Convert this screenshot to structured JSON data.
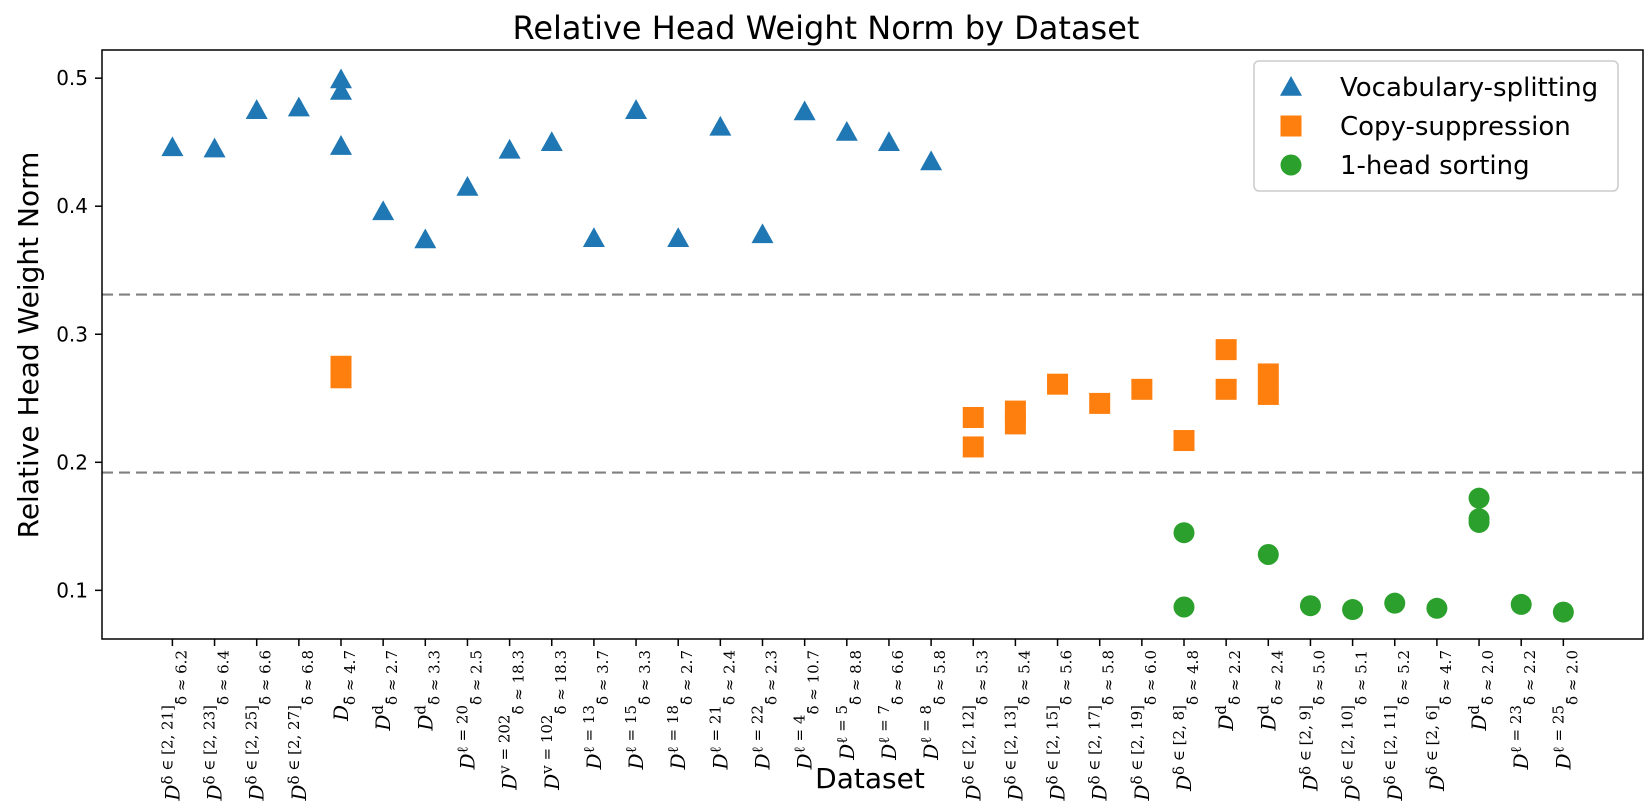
{
  "chart_data": {
    "type": "scatter",
    "title": "Relative Head Weight Norm by Dataset",
    "xlabel": "Dataset",
    "ylabel": "Relative Head Weight Norm",
    "ylim": [
      0.062,
      0.522
    ],
    "yticks": [
      "0.1",
      "0.2",
      "0.3",
      "0.4",
      "0.5"
    ],
    "categories": [
      {
        "base": "D",
        "sup": "δ ∈ [2, 21]",
        "sub": "δ̄ ≈ 6.2"
      },
      {
        "base": "D",
        "sup": "δ ∈ [2, 23]",
        "sub": "δ̄ ≈ 6.4"
      },
      {
        "base": "D",
        "sup": "δ ∈ [2, 25]",
        "sub": "δ̄ ≈ 6.6"
      },
      {
        "base": "D",
        "sup": "δ ∈ [2, 27]",
        "sub": "δ̄ ≈ 6.8"
      },
      {
        "base": "D",
        "sup": "",
        "sub": "δ̄ ≈ 4.7"
      },
      {
        "base": "D",
        "sup": "d",
        "sub": "δ̄ ≈ 2.7"
      },
      {
        "base": "D",
        "sup": "d",
        "sub": "δ̄ ≈ 3.3"
      },
      {
        "base": "D",
        "sup": "ℓ = 20",
        "sub": "δ̄ ≈ 2.5"
      },
      {
        "base": "D",
        "sup": "v = 202",
        "sub": "δ̄ ≈ 18.3"
      },
      {
        "base": "D",
        "sup": "v = 102",
        "sub": "δ̄ ≈ 18.3"
      },
      {
        "base": "D",
        "sup": "ℓ = 13",
        "sub": "δ̄ ≈ 3.7"
      },
      {
        "base": "D",
        "sup": "ℓ = 15",
        "sub": "δ̄ ≈ 3.3"
      },
      {
        "base": "D",
        "sup": "ℓ = 18",
        "sub": "δ̄ ≈ 2.7"
      },
      {
        "base": "D",
        "sup": "ℓ = 21",
        "sub": "δ̄ ≈ 2.4"
      },
      {
        "base": "D",
        "sup": "ℓ = 22",
        "sub": "δ̄ ≈ 2.3"
      },
      {
        "base": "D",
        "sup": "ℓ = 4",
        "sub": "δ̄ ≈ 10.7"
      },
      {
        "base": "D",
        "sup": "ℓ = 5",
        "sub": "δ̄ ≈ 8.8"
      },
      {
        "base": "D",
        "sup": "ℓ = 7",
        "sub": "δ̄ ≈ 6.6"
      },
      {
        "base": "D",
        "sup": "ℓ = 8",
        "sub": "δ̄ ≈ 5.8"
      },
      {
        "base": "D",
        "sup": "δ ∈ [2, 12]",
        "sub": "δ̄ ≈ 5.3"
      },
      {
        "base": "D",
        "sup": "δ ∈ [2, 13]",
        "sub": "δ̄ ≈ 5.4"
      },
      {
        "base": "D",
        "sup": "δ ∈ [2, 15]",
        "sub": "δ̄ ≈ 5.6"
      },
      {
        "base": "D",
        "sup": "δ ∈ [2, 17]",
        "sub": "δ̄ ≈ 5.8"
      },
      {
        "base": "D",
        "sup": "δ ∈ [2, 19]",
        "sub": "δ̄ ≈ 6.0"
      },
      {
        "base": "D",
        "sup": "δ ∈ [2, 8]",
        "sub": "δ̄ ≈ 4.8"
      },
      {
        "base": "D",
        "sup": "d",
        "sub": "δ̄ ≈ 2.2"
      },
      {
        "base": "D",
        "sup": "d",
        "sub": "δ̄ ≈ 2.4"
      },
      {
        "base": "D",
        "sup": "δ ∈ [2, 9]",
        "sub": "δ̄ ≈ 5.0"
      },
      {
        "base": "D",
        "sup": "δ ∈ [2, 10]",
        "sub": "δ̄ ≈ 5.1"
      },
      {
        "base": "D",
        "sup": "δ ∈ [2, 11]",
        "sub": "δ̄ ≈ 5.2"
      },
      {
        "base": "D",
        "sup": "δ ∈ [2, 6]",
        "sub": "δ̄ ≈ 4.7"
      },
      {
        "base": "D",
        "sup": "d",
        "sub": "δ̄ ≈ 2.0"
      },
      {
        "base": "D",
        "sup": "ℓ = 23",
        "sub": "δ̄ ≈ 2.2"
      },
      {
        "base": "D",
        "sup": "ℓ = 25",
        "sub": "δ̄ ≈ 2.0"
      }
    ],
    "series": [
      {
        "name": "Vocabulary-splitting",
        "marker": "triangle",
        "color": "#1f77b4",
        "points": [
          [
            0,
            0.446
          ],
          [
            1,
            0.445
          ],
          [
            2,
            0.475
          ],
          [
            3,
            0.477
          ],
          [
            4,
            0.499
          ],
          [
            4,
            0.49
          ],
          [
            4,
            0.447
          ],
          [
            5,
            0.396
          ],
          [
            6,
            0.374
          ],
          [
            7,
            0.415
          ],
          [
            8,
            0.444
          ],
          [
            9,
            0.45
          ],
          [
            10,
            0.375
          ],
          [
            11,
            0.475
          ],
          [
            12,
            0.375
          ],
          [
            13,
            0.462
          ],
          [
            14,
            0.378
          ],
          [
            15,
            0.474
          ],
          [
            16,
            0.458
          ],
          [
            17,
            0.45
          ],
          [
            18,
            0.435
          ]
        ]
      },
      {
        "name": "Copy-suppression",
        "marker": "square",
        "color": "#ff7f0e",
        "points": [
          [
            4,
            0.275
          ],
          [
            4,
            0.266
          ],
          [
            19,
            0.235
          ],
          [
            19,
            0.212
          ],
          [
            20,
            0.24
          ],
          [
            20,
            0.23
          ],
          [
            21,
            0.261
          ],
          [
            22,
            0.246
          ],
          [
            23,
            0.257
          ],
          [
            24,
            0.217
          ],
          [
            25,
            0.288
          ],
          [
            25,
            0.257
          ],
          [
            26,
            0.269
          ],
          [
            26,
            0.253
          ]
        ]
      },
      {
        "name": "1-head sorting",
        "marker": "circle",
        "color": "#2ca02c",
        "points": [
          [
            24,
            0.145
          ],
          [
            24,
            0.087
          ],
          [
            26,
            0.128
          ],
          [
            27,
            0.088
          ],
          [
            28,
            0.085
          ],
          [
            29,
            0.09
          ],
          [
            30,
            0.086
          ],
          [
            31,
            0.172
          ],
          [
            31,
            0.156
          ],
          [
            31,
            0.153
          ],
          [
            32,
            0.089
          ],
          [
            33,
            0.083
          ]
        ]
      }
    ],
    "reference_lines": [
      0.331,
      0.192
    ],
    "reference_line_color": "#808080",
    "legend_position": "upper right",
    "grid": false
  }
}
